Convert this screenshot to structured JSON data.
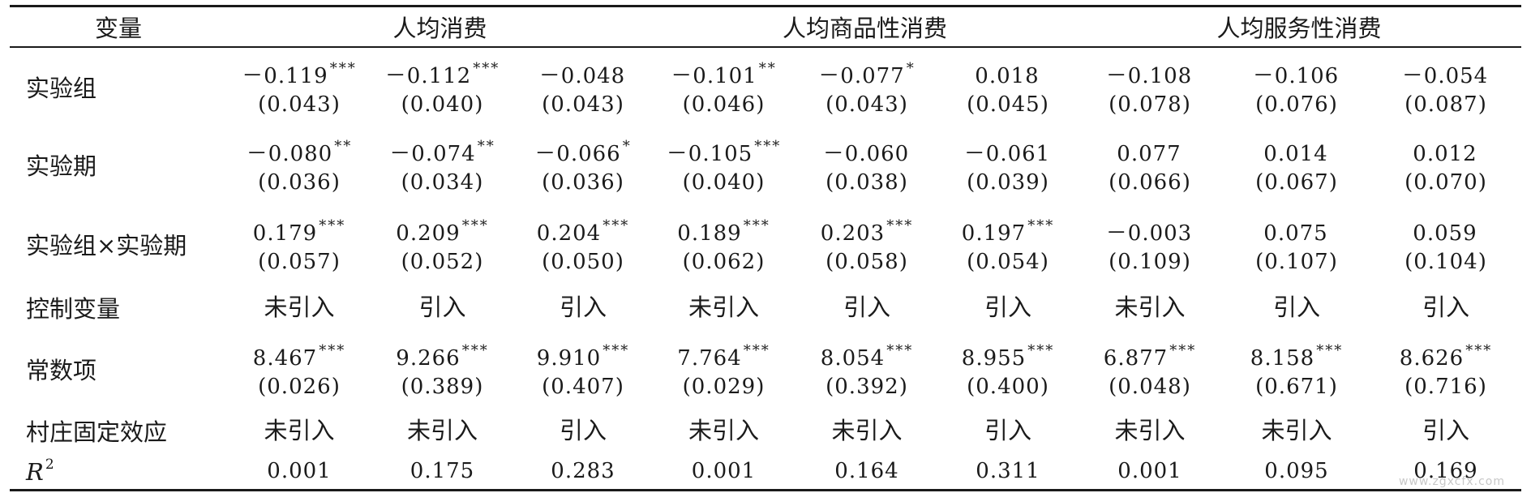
{
  "headers": {
    "variable": "变量",
    "groups": [
      "人均消费",
      "人均商品性消费",
      "人均服务性消费"
    ]
  },
  "rows": [
    {
      "label": "实验组",
      "cells": [
        {
          "coef": "－0.119",
          "stars": "***",
          "se": "(0.043)"
        },
        {
          "coef": "－0.112",
          "stars": "***",
          "se": "(0.040)"
        },
        {
          "coef": "－0.048",
          "stars": "",
          "se": "(0.043)"
        },
        {
          "coef": "－0.101",
          "stars": "**",
          "se": "(0.046)"
        },
        {
          "coef": "－0.077",
          "stars": "*",
          "se": "(0.043)"
        },
        {
          "coef": "0.018",
          "stars": "",
          "se": "(0.045)"
        },
        {
          "coef": "－0.108",
          "stars": "",
          "se": "(0.078)"
        },
        {
          "coef": "－0.106",
          "stars": "",
          "se": "(0.076)"
        },
        {
          "coef": "－0.054",
          "stars": "",
          "se": "(0.087)"
        }
      ]
    },
    {
      "label": "实验期",
      "cells": [
        {
          "coef": "－0.080",
          "stars": "**",
          "se": "(0.036)"
        },
        {
          "coef": "－0.074",
          "stars": "**",
          "se": "(0.034)"
        },
        {
          "coef": "－0.066",
          "stars": "*",
          "se": "(0.036)"
        },
        {
          "coef": "－0.105",
          "stars": "***",
          "se": "(0.040)"
        },
        {
          "coef": "－0.060",
          "stars": "",
          "se": "(0.038)"
        },
        {
          "coef": "－0.061",
          "stars": "",
          "se": "(0.039)"
        },
        {
          "coef": "0.077",
          "stars": "",
          "se": "(0.066)"
        },
        {
          "coef": "0.014",
          "stars": "",
          "se": "(0.067)"
        },
        {
          "coef": "0.012",
          "stars": "",
          "se": "(0.070)"
        }
      ]
    },
    {
      "label": "实验组×实验期",
      "cells": [
        {
          "coef": "0.179",
          "stars": "***",
          "se": "(0.057)"
        },
        {
          "coef": "0.209",
          "stars": "***",
          "se": "(0.052)"
        },
        {
          "coef": "0.204",
          "stars": "***",
          "se": "(0.050)"
        },
        {
          "coef": "0.189",
          "stars": "***",
          "se": "(0.062)"
        },
        {
          "coef": "0.203",
          "stars": "***",
          "se": "(0.058)"
        },
        {
          "coef": "0.197",
          "stars": "***",
          "se": "(0.054)"
        },
        {
          "coef": "－0.003",
          "stars": "",
          "se": "(0.109)"
        },
        {
          "coef": "0.075",
          "stars": "",
          "se": "(0.107)"
        },
        {
          "coef": "0.059",
          "stars": "",
          "se": "(0.104)"
        }
      ]
    }
  ],
  "controls": {
    "label": "控制变量",
    "values": [
      "未引入",
      "引入",
      "引入",
      "未引入",
      "引入",
      "引入",
      "未引入",
      "引入",
      "引入"
    ]
  },
  "constant": {
    "label": "常数项",
    "cells": [
      {
        "coef": "8.467",
        "stars": "***",
        "se": "(0.026)"
      },
      {
        "coef": "9.266",
        "stars": "***",
        "se": "(0.389)"
      },
      {
        "coef": "9.910",
        "stars": "***",
        "se": "(0.407)"
      },
      {
        "coef": "7.764",
        "stars": "***",
        "se": "(0.029)"
      },
      {
        "coef": "8.054",
        "stars": "***",
        "se": "(0.392)"
      },
      {
        "coef": "8.955",
        "stars": "***",
        "se": "(0.400)"
      },
      {
        "coef": "6.877",
        "stars": "***",
        "se": "(0.048)"
      },
      {
        "coef": "8.158",
        "stars": "***",
        "se": "(0.671)"
      },
      {
        "coef": "8.626",
        "stars": "***",
        "se": "(0.716)"
      }
    ]
  },
  "village_fe": {
    "label": "村庄固定效应",
    "values": [
      "未引入",
      "未引入",
      "引入",
      "未引入",
      "未引入",
      "引入",
      "未引入",
      "未引入",
      "引入"
    ]
  },
  "r2": {
    "label": "R",
    "sup": "2",
    "values": [
      "0.001",
      "0.175",
      "0.283",
      "0.001",
      "0.164",
      "0.311",
      "0.001",
      "0.095",
      "0.169"
    ]
  },
  "watermark": "www.zgxcfx.com"
}
